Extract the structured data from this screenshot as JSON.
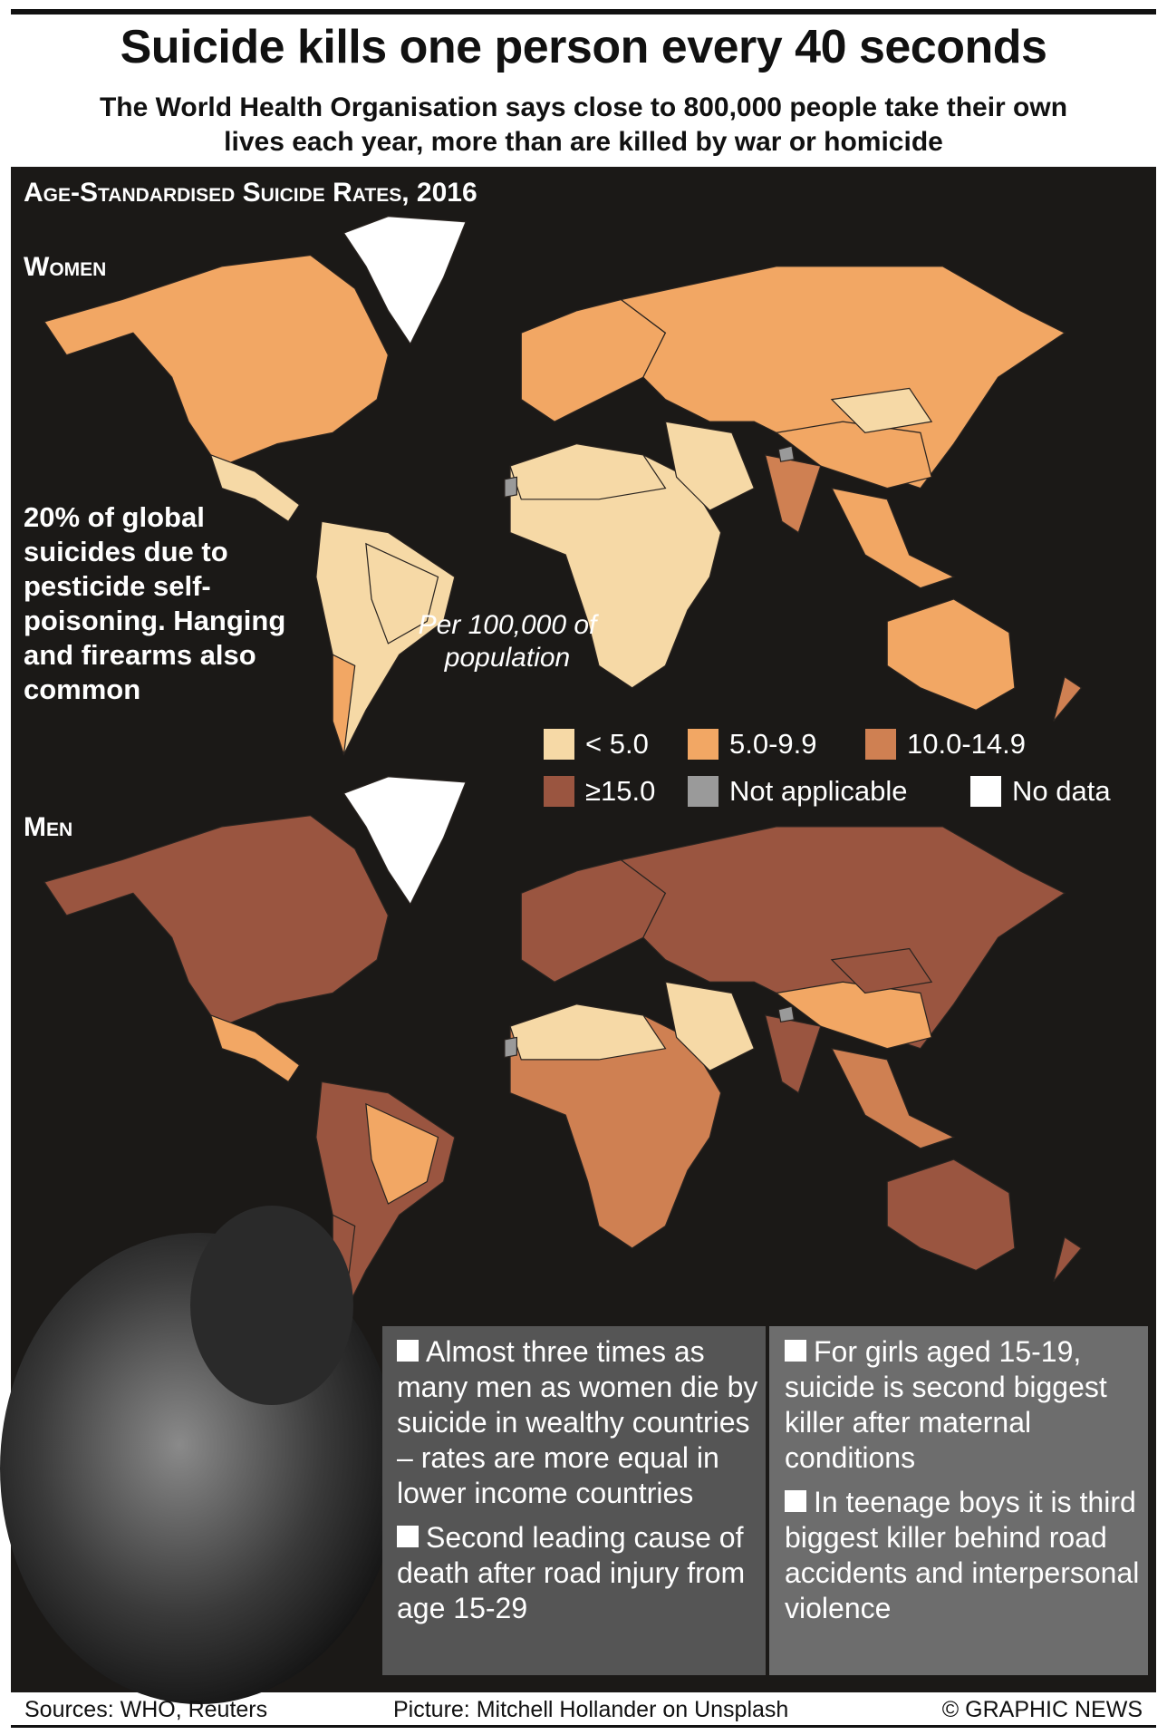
{
  "header": {
    "title": "Suicide kills one person every 40 seconds",
    "subtitle": "The World Health Organisation says close to 800,000 people take their own lives each year, more than are killed by war or homicide"
  },
  "section_title": "Age-Standardised Suicide Rates, 2016",
  "maps": [
    {
      "label": "Women"
    },
    {
      "label": "Men"
    }
  ],
  "note": "20% of global suicides due to pesticide self-poisoning. Hanging and firearms also common",
  "unit": "Per 100,000 of population",
  "legend": [
    {
      "label": "< 5.0",
      "color": "#f6d9a6"
    },
    {
      "label": "5.0-9.9",
      "color": "#f2a764"
    },
    {
      "label": "10.0-14.9",
      "color": "#cf8052"
    },
    {
      "label": "≥15.0",
      "color": "#9a5540"
    },
    {
      "label": "Not applicable",
      "color": "#9a9a9a"
    },
    {
      "label": "No data",
      "color": "#ffffff"
    }
  ],
  "facts": {
    "left": [
      "Almost three times as many men as women die by suicide in wealthy countries – rates are more equal in lower income countries",
      "Second leading cause of death after road injury from age 15-29"
    ],
    "right": [
      "For girls aged 15-19, suicide is second biggest killer after maternal conditions",
      "In teenage boys it is third biggest killer behind road accidents and interpersonal violence"
    ]
  },
  "footer": {
    "sources": "Sources: WHO, Reuters",
    "picture": "Picture: Mitchell Hollander on Unsplash",
    "credit": "© GRAPHIC NEWS"
  }
}
